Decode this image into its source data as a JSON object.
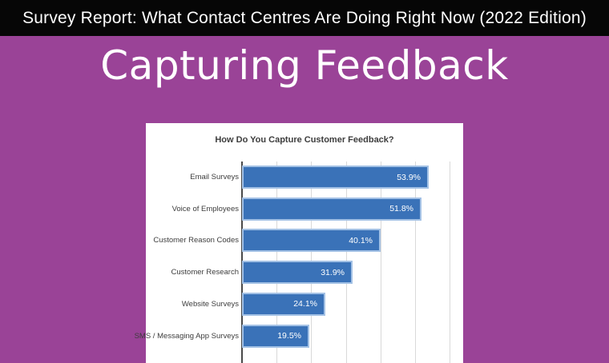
{
  "banner": {
    "text": "Survey Report: What Contact Centres Are Doing Right Now (2022 Edition)"
  },
  "page_title": "Capturing Feedback",
  "colors": {
    "background": "#9A4397",
    "banner_bg": "#060606",
    "banner_text": "#FFFFFF",
    "slide_title_text": "#FFFFFF",
    "card_bg": "#FFFFFF",
    "bar_fill": "#3A72B8",
    "bar_border": "#A3C1E5",
    "bar_value_text": "#FFFFFF",
    "gridline": "#D9D9D9",
    "axis_line": "#4A4A4A",
    "chart_text": "#3D3D3D"
  },
  "chart_data": {
    "type": "bar",
    "orientation": "horizontal",
    "title": "How Do You Capture Customer Feedback?",
    "categories": [
      "Email Surveys",
      "Voice of Employees",
      "Customer Reason Codes",
      "Customer Research",
      "Website Surveys",
      "SMS / Messaging App Surveys"
    ],
    "values": [
      53.9,
      51.8,
      40.1,
      31.9,
      24.1,
      19.5
    ],
    "value_labels": [
      "53.9%",
      "51.8%",
      "40.1%",
      "31.9%",
      "24.1%",
      "19.5%"
    ],
    "unit": "%",
    "xlim": [
      0,
      60
    ],
    "gridline_step": 10,
    "grid": "vertical",
    "legend": "none",
    "note": "chart is cropped at the bottom edge of the image"
  }
}
